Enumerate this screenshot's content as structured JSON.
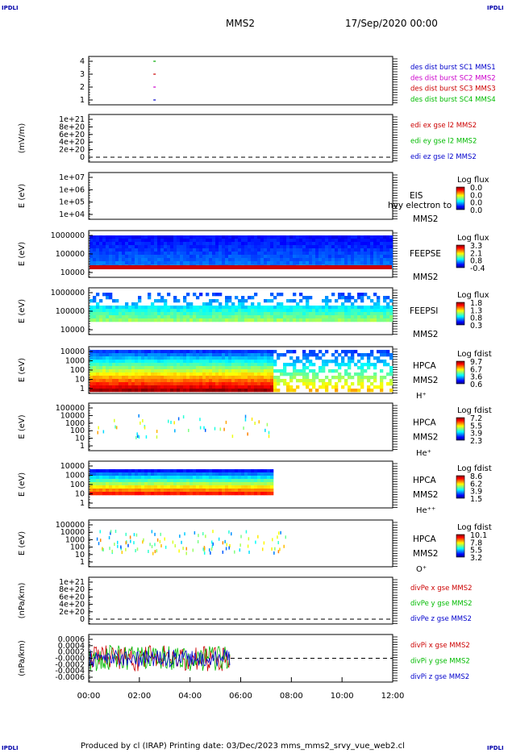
{
  "corner_label": "IPDLI",
  "header": {
    "spacecraft": "MMS2",
    "date": "17/Sep/2020 00:00"
  },
  "footer": {
    "text": "Produced by cl (IRAP)   Printing date: 03/Dec/2023   mms_mms2_srvy_vue_web2.cl"
  },
  "chart_data": {
    "type": "heatmap",
    "x_ticks": [
      "00:00",
      "02:00",
      "04:00",
      "06:00",
      "08:00",
      "10:00",
      "12:00"
    ],
    "x_range_hours": [
      0,
      12
    ],
    "panels": [
      {
        "id": "burst",
        "type": "scatter",
        "ylabel": "",
        "yticks": [
          "4",
          "3",
          "2",
          "1"
        ],
        "legend": [
          {
            "text": "des dist burst SC1 MMS1",
            "color": "#0000cc"
          },
          {
            "text": "des dist burst SC2 MMS2",
            "color": "#cc00cc"
          },
          {
            "text": "des dist burst SC3 MMS3",
            "color": "#cc0000"
          },
          {
            "text": "des dist burst SC4 MMS4",
            "color": "#00bb00"
          }
        ],
        "points": [
          {
            "x_hour": 2.6,
            "y": 4
          },
          {
            "x_hour": 2.6,
            "y": 3
          },
          {
            "x_hour": 2.6,
            "y": 2
          },
          {
            "x_hour": 2.6,
            "y": 1
          }
        ]
      },
      {
        "id": "edi",
        "type": "line",
        "ylabel": "(mV/m)",
        "yticks": [
          "1e+21",
          "8e+20",
          "6e+20",
          "4e+20",
          "2e+20",
          "0"
        ],
        "legend": [
          {
            "text": "edi ex gse l2 MMS2",
            "color": "#cc0000"
          },
          {
            "text": "edi ey gse l2 MMS2",
            "color": "#00bb00"
          },
          {
            "text": "edi ez gse l2 MMS2",
            "color": "#0000cc"
          }
        ]
      },
      {
        "id": "eis",
        "type": "heatmap",
        "ylabel": "E (eV)",
        "yticks": [
          "1e+07",
          "1e+06",
          "1e+05",
          "1e+04"
        ],
        "side": [
          "EIS",
          "MMS2"
        ],
        "overlay": "hvy electron to",
        "cbar": {
          "title": "Log flux",
          "ticks": [
            "0.0",
            "0.0",
            "0.0",
            "0.0"
          ]
        }
      },
      {
        "id": "feepse",
        "type": "heatmap",
        "ylabel": "E (eV)",
        "yticks": [
          "1000000",
          "100000",
          "10000"
        ],
        "side": [
          "FEEPSE",
          "MMS2"
        ],
        "cbar": {
          "title": "Log flux",
          "ticks": [
            "3.3",
            "2.1",
            "0.8",
            "-0.4"
          ]
        }
      },
      {
        "id": "feepsi",
        "type": "heatmap",
        "ylabel": "E (eV)",
        "yticks": [
          "1000000",
          "100000",
          "10000"
        ],
        "side": [
          "FEEPSI",
          "MMS2"
        ],
        "cbar": {
          "title": "Log flux",
          "ticks": [
            "1.8",
            "1.3",
            "0.8",
            "0.3"
          ]
        }
      },
      {
        "id": "hpca_h",
        "type": "heatmap",
        "ylabel": "E (eV)",
        "yticks": [
          "10000",
          "1000",
          "100",
          "10",
          "1"
        ],
        "side": [
          "HPCA",
          "MMS2",
          "H⁺"
        ],
        "cbar": {
          "title": "Log fdist",
          "ticks": [
            "9.7",
            "6.7",
            "3.6",
            "0.6"
          ]
        }
      },
      {
        "id": "hpca_he",
        "type": "heatmap",
        "ylabel": "E (eV)",
        "yticks": [
          "100000",
          "10000",
          "1000",
          "100",
          "10",
          "1"
        ],
        "side": [
          "HPCA",
          "MMS2",
          "He⁺"
        ],
        "cbar": {
          "title": "Log fdist",
          "ticks": [
            "7.2",
            "5.5",
            "3.9",
            "2.3"
          ]
        }
      },
      {
        "id": "hpca_hepp",
        "type": "heatmap",
        "ylabel": "E (eV)",
        "yticks": [
          "10000",
          "1000",
          "100",
          "10",
          "1"
        ],
        "side": [
          "HPCA",
          "MMS2",
          "He⁺⁺"
        ],
        "cbar": {
          "title": "Log fdist",
          "ticks": [
            "8.6",
            "6.2",
            "3.9",
            "1.5"
          ]
        }
      },
      {
        "id": "hpca_o",
        "type": "heatmap",
        "ylabel": "E (eV)",
        "yticks": [
          "100000",
          "10000",
          "1000",
          "100",
          "10",
          "1"
        ],
        "side": [
          "HPCA",
          "MMS2",
          "O⁺"
        ],
        "cbar": {
          "title": "Log fdist",
          "ticks": [
            "10.1",
            "7.8",
            "5.5",
            "3.2"
          ]
        }
      },
      {
        "id": "divpe",
        "type": "line",
        "ylabel": "(nPa/km)",
        "yticks": [
          "1e+21",
          "8e+20",
          "6e+20",
          "4e+20",
          "2e+20",
          "0"
        ],
        "legend": [
          {
            "text": "divPe x gse MMS2",
            "color": "#cc0000"
          },
          {
            "text": "divPe y gse MMS2",
            "color": "#00bb00"
          },
          {
            "text": "divPe z gse MMS2",
            "color": "#0000cc"
          }
        ]
      },
      {
        "id": "divpi",
        "type": "line",
        "ylabel": "(nPa/km)",
        "yticks": [
          "0.0006",
          "0.0004",
          "0.0002",
          "-0.0000",
          "-0.0002",
          "-0.0004",
          "-0.0006"
        ],
        "legend": [
          {
            "text": "divPi x gse MMS2",
            "color": "#cc0000"
          },
          {
            "text": "divPi y gse MMS2",
            "color": "#00bb00"
          },
          {
            "text": "divPi z gse MMS2",
            "color": "#0000cc"
          }
        ],
        "data_extent_hours": [
          0,
          5.6
        ]
      }
    ]
  }
}
